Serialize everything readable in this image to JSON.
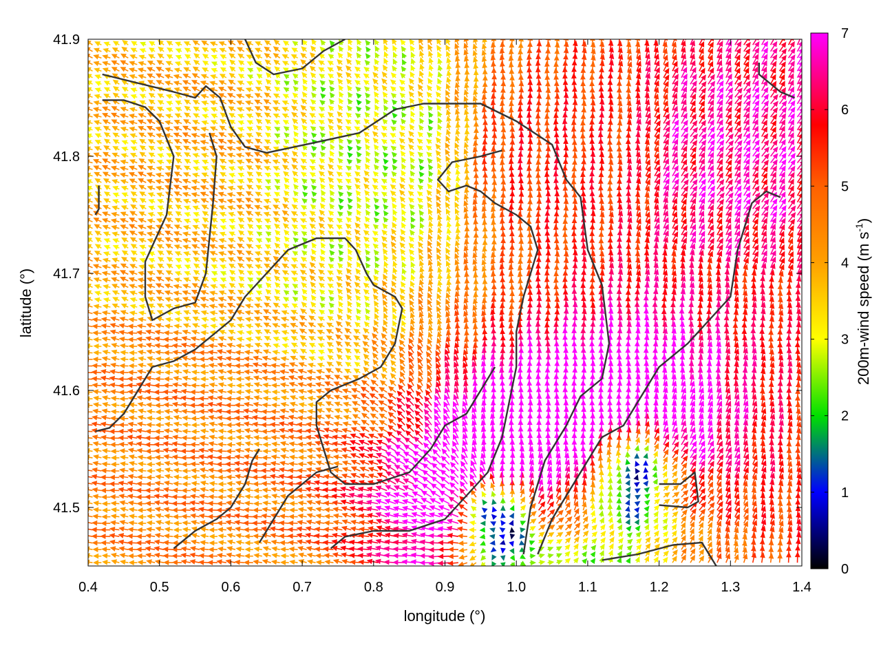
{
  "chart_data": {
    "type": "quiver",
    "xlabel": "longitude (°)",
    "ylabel": "latitude (°)",
    "colorbar_label": "200m-wind speed (m s",
    "colorbar_label_sup": "-1",
    "colorbar_label_end": ")",
    "xlim": [
      0.4,
      1.4
    ],
    "ylim": [
      41.45,
      41.9
    ],
    "x_ticks": [
      0.4,
      0.5,
      0.6,
      0.7,
      0.8,
      0.9,
      1.0,
      1.1,
      1.2,
      1.3,
      1.4
    ],
    "x_tick_labels": [
      "0.4",
      "0.5",
      "0.6",
      "0.7",
      "0.8",
      "0.9",
      "1.0",
      "1.1",
      "1.2",
      "1.3",
      "1.4"
    ],
    "y_ticks": [
      41.5,
      41.6,
      41.7,
      41.8,
      41.9
    ],
    "y_tick_labels": [
      "41.5",
      "41.6",
      "41.7",
      "41.8",
      "41.9"
    ],
    "color_range": [
      0,
      7
    ],
    "colorbar_ticks": [
      0,
      1,
      2,
      3,
      4,
      5,
      6,
      7
    ],
    "colorbar_tick_labels": [
      "0",
      "1",
      "2",
      "3",
      "4",
      "5",
      "6",
      "7"
    ],
    "colormap_stops": [
      {
        "value": 0,
        "color": "#000000"
      },
      {
        "value": 1,
        "color": "#0000ff"
      },
      {
        "value": 2,
        "color": "#00e000"
      },
      {
        "value": 3,
        "color": "#ffff00"
      },
      {
        "value": 4,
        "color": "#ffa000"
      },
      {
        "value": 5,
        "color": "#ff6000"
      },
      {
        "value": 5.8,
        "color": "#ff0000"
      },
      {
        "value": 7,
        "color": "#ff00ff"
      }
    ],
    "grid": false,
    "vector_field": {
      "grid_step_lon": 0.0125,
      "grid_step_lat": 0.0056,
      "sources": [
        {
          "lon": 0.97,
          "lat": 41.49,
          "strength": 6.8
        },
        {
          "lon": 1.17,
          "lat": 41.53,
          "strength": 3.5
        }
      ],
      "regional_flows": [
        {
          "lon": 0.5,
          "lat": 41.55,
          "u": -4.5,
          "v": 0.5
        },
        {
          "lon": 0.55,
          "lat": 41.8,
          "u": -3.5,
          "v": 1.5
        },
        {
          "lon": 0.8,
          "lat": 41.8,
          "u": -2.0,
          "v": 2.0
        },
        {
          "lon": 1.05,
          "lat": 41.8,
          "u": 0.0,
          "v": 5.5
        },
        {
          "lon": 1.3,
          "lat": 41.8,
          "u": 3.5,
          "v": 5.5
        },
        {
          "lon": 1.3,
          "lat": 41.6,
          "u": 0.5,
          "v": 5.5
        }
      ]
    },
    "contours": [
      [
        [
          0.42,
          41.87
        ],
        [
          0.52,
          41.855
        ],
        [
          0.55,
          41.85
        ],
        [
          0.565,
          41.86
        ],
        [
          0.585,
          41.85
        ],
        [
          0.6,
          41.825
        ],
        [
          0.62,
          41.808
        ],
        [
          0.65,
          41.803
        ],
        [
          0.72,
          41.812
        ],
        [
          0.78,
          41.82
        ],
        [
          0.83,
          41.84
        ],
        [
          0.87,
          41.845
        ],
        [
          0.95,
          41.845
        ],
        [
          1.0,
          41.83
        ],
        [
          1.05,
          41.81
        ],
        [
          1.07,
          41.78
        ],
        [
          1.09,
          41.765
        ],
        [
          1.1,
          41.72
        ],
        [
          1.12,
          41.69
        ],
        [
          1.13,
          41.64
        ],
        [
          1.12,
          41.61
        ],
        [
          1.09,
          41.595
        ],
        [
          1.07,
          41.57
        ],
        [
          1.04,
          41.54
        ],
        [
          1.02,
          41.5
        ],
        [
          1.01,
          41.46
        ]
      ],
      [
        [
          0.42,
          41.848
        ],
        [
          0.45,
          41.848
        ],
        [
          0.48,
          41.842
        ],
        [
          0.5,
          41.83
        ],
        [
          0.52,
          41.8
        ],
        [
          0.51,
          41.75
        ],
        [
          0.495,
          41.73
        ],
        [
          0.48,
          41.71
        ],
        [
          0.48,
          41.68
        ],
        [
          0.49,
          41.66
        ],
        [
          0.52,
          41.67
        ],
        [
          0.55,
          41.675
        ],
        [
          0.565,
          41.7
        ],
        [
          0.57,
          41.73
        ],
        [
          0.575,
          41.76
        ],
        [
          0.58,
          41.8
        ],
        [
          0.57,
          41.82
        ]
      ],
      [
        [
          0.41,
          41.565
        ],
        [
          0.43,
          41.568
        ],
        [
          0.45,
          41.58
        ],
        [
          0.47,
          41.6
        ],
        [
          0.49,
          41.62
        ],
        [
          0.52,
          41.625
        ],
        [
          0.55,
          41.635
        ],
        [
          0.58,
          41.65
        ],
        [
          0.6,
          41.66
        ],
        [
          0.62,
          41.68
        ],
        [
          0.65,
          41.7
        ],
        [
          0.68,
          41.72
        ],
        [
          0.72,
          41.73
        ],
        [
          0.76,
          41.73
        ],
        [
          0.775,
          41.72
        ],
        [
          0.79,
          41.7
        ],
        [
          0.8,
          41.69
        ],
        [
          0.83,
          41.68
        ],
        [
          0.84,
          41.67
        ],
        [
          0.83,
          41.64
        ],
        [
          0.81,
          41.62
        ],
        [
          0.78,
          41.61
        ],
        [
          0.74,
          41.6
        ],
        [
          0.72,
          41.59
        ],
        [
          0.72,
          41.57
        ],
        [
          0.73,
          41.55
        ],
        [
          0.74,
          41.53
        ],
        [
          0.76,
          41.52
        ],
        [
          0.8,
          41.52
        ],
        [
          0.85,
          41.53
        ],
        [
          0.88,
          41.55
        ],
        [
          0.9,
          41.57
        ],
        [
          0.93,
          41.58
        ],
        [
          0.95,
          41.6
        ],
        [
          0.97,
          41.62
        ]
      ],
      [
        [
          0.52,
          41.465
        ],
        [
          0.55,
          41.48
        ],
        [
          0.58,
          41.49
        ],
        [
          0.6,
          41.5
        ],
        [
          0.62,
          41.52
        ],
        [
          0.63,
          41.54
        ],
        [
          0.64,
          41.55
        ]
      ],
      [
        [
          0.64,
          41.47
        ],
        [
          0.66,
          41.49
        ],
        [
          0.68,
          41.51
        ],
        [
          0.7,
          41.52
        ],
        [
          0.72,
          41.53
        ],
        [
          0.75,
          41.535
        ]
      ],
      [
        [
          0.74,
          41.465
        ],
        [
          0.76,
          41.475
        ],
        [
          0.8,
          41.48
        ],
        [
          0.85,
          41.48
        ],
        [
          0.9,
          41.49
        ],
        [
          0.93,
          41.51
        ],
        [
          0.96,
          41.53
        ],
        [
          0.98,
          41.56
        ],
        [
          0.99,
          41.59
        ],
        [
          1.0,
          41.62
        ],
        [
          1.0,
          41.65
        ],
        [
          1.01,
          41.68
        ],
        [
          1.02,
          41.7
        ],
        [
          1.03,
          41.72
        ],
        [
          1.02,
          41.74
        ],
        [
          1.0,
          41.75
        ],
        [
          0.97,
          41.76
        ],
        [
          0.95,
          41.77
        ],
        [
          0.93,
          41.775
        ],
        [
          0.905,
          41.77
        ],
        [
          0.89,
          41.78
        ],
        [
          0.91,
          41.795
        ],
        [
          0.95,
          41.8
        ],
        [
          0.98,
          41.805
        ]
      ],
      [
        [
          1.03,
          41.46
        ],
        [
          1.05,
          41.49
        ],
        [
          1.07,
          41.51
        ],
        [
          1.09,
          41.53
        ],
        [
          1.12,
          41.56
        ],
        [
          1.15,
          41.57
        ],
        [
          1.18,
          41.6
        ],
        [
          1.2,
          41.62
        ],
        [
          1.24,
          41.64
        ],
        [
          1.27,
          41.66
        ],
        [
          1.3,
          41.68
        ],
        [
          1.31,
          41.72
        ],
        [
          1.32,
          41.74
        ],
        [
          1.33,
          41.76
        ],
        [
          1.35,
          41.77
        ],
        [
          1.37,
          41.765
        ]
      ],
      [
        [
          1.2,
          41.52
        ],
        [
          1.23,
          41.52
        ],
        [
          1.25,
          41.53
        ],
        [
          1.255,
          41.505
        ],
        [
          1.24,
          41.5
        ],
        [
          1.2,
          41.502
        ]
      ],
      [
        [
          1.12,
          41.455
        ],
        [
          1.17,
          41.46
        ],
        [
          1.22,
          41.468
        ],
        [
          1.26,
          41.47
        ],
        [
          1.28,
          41.45
        ]
      ],
      [
        [
          0.62,
          41.9
        ],
        [
          0.635,
          41.88
        ],
        [
          0.66,
          41.87
        ],
        [
          0.7,
          41.875
        ],
        [
          0.73,
          41.89
        ],
        [
          0.76,
          41.9
        ]
      ],
      [
        [
          1.34,
          41.88
        ],
        [
          1.34,
          41.87
        ],
        [
          1.37,
          41.855
        ],
        [
          1.39,
          41.85
        ]
      ],
      [
        [
          0.415,
          41.775
        ],
        [
          0.415,
          41.755
        ],
        [
          0.41,
          41.75
        ]
      ]
    ]
  }
}
